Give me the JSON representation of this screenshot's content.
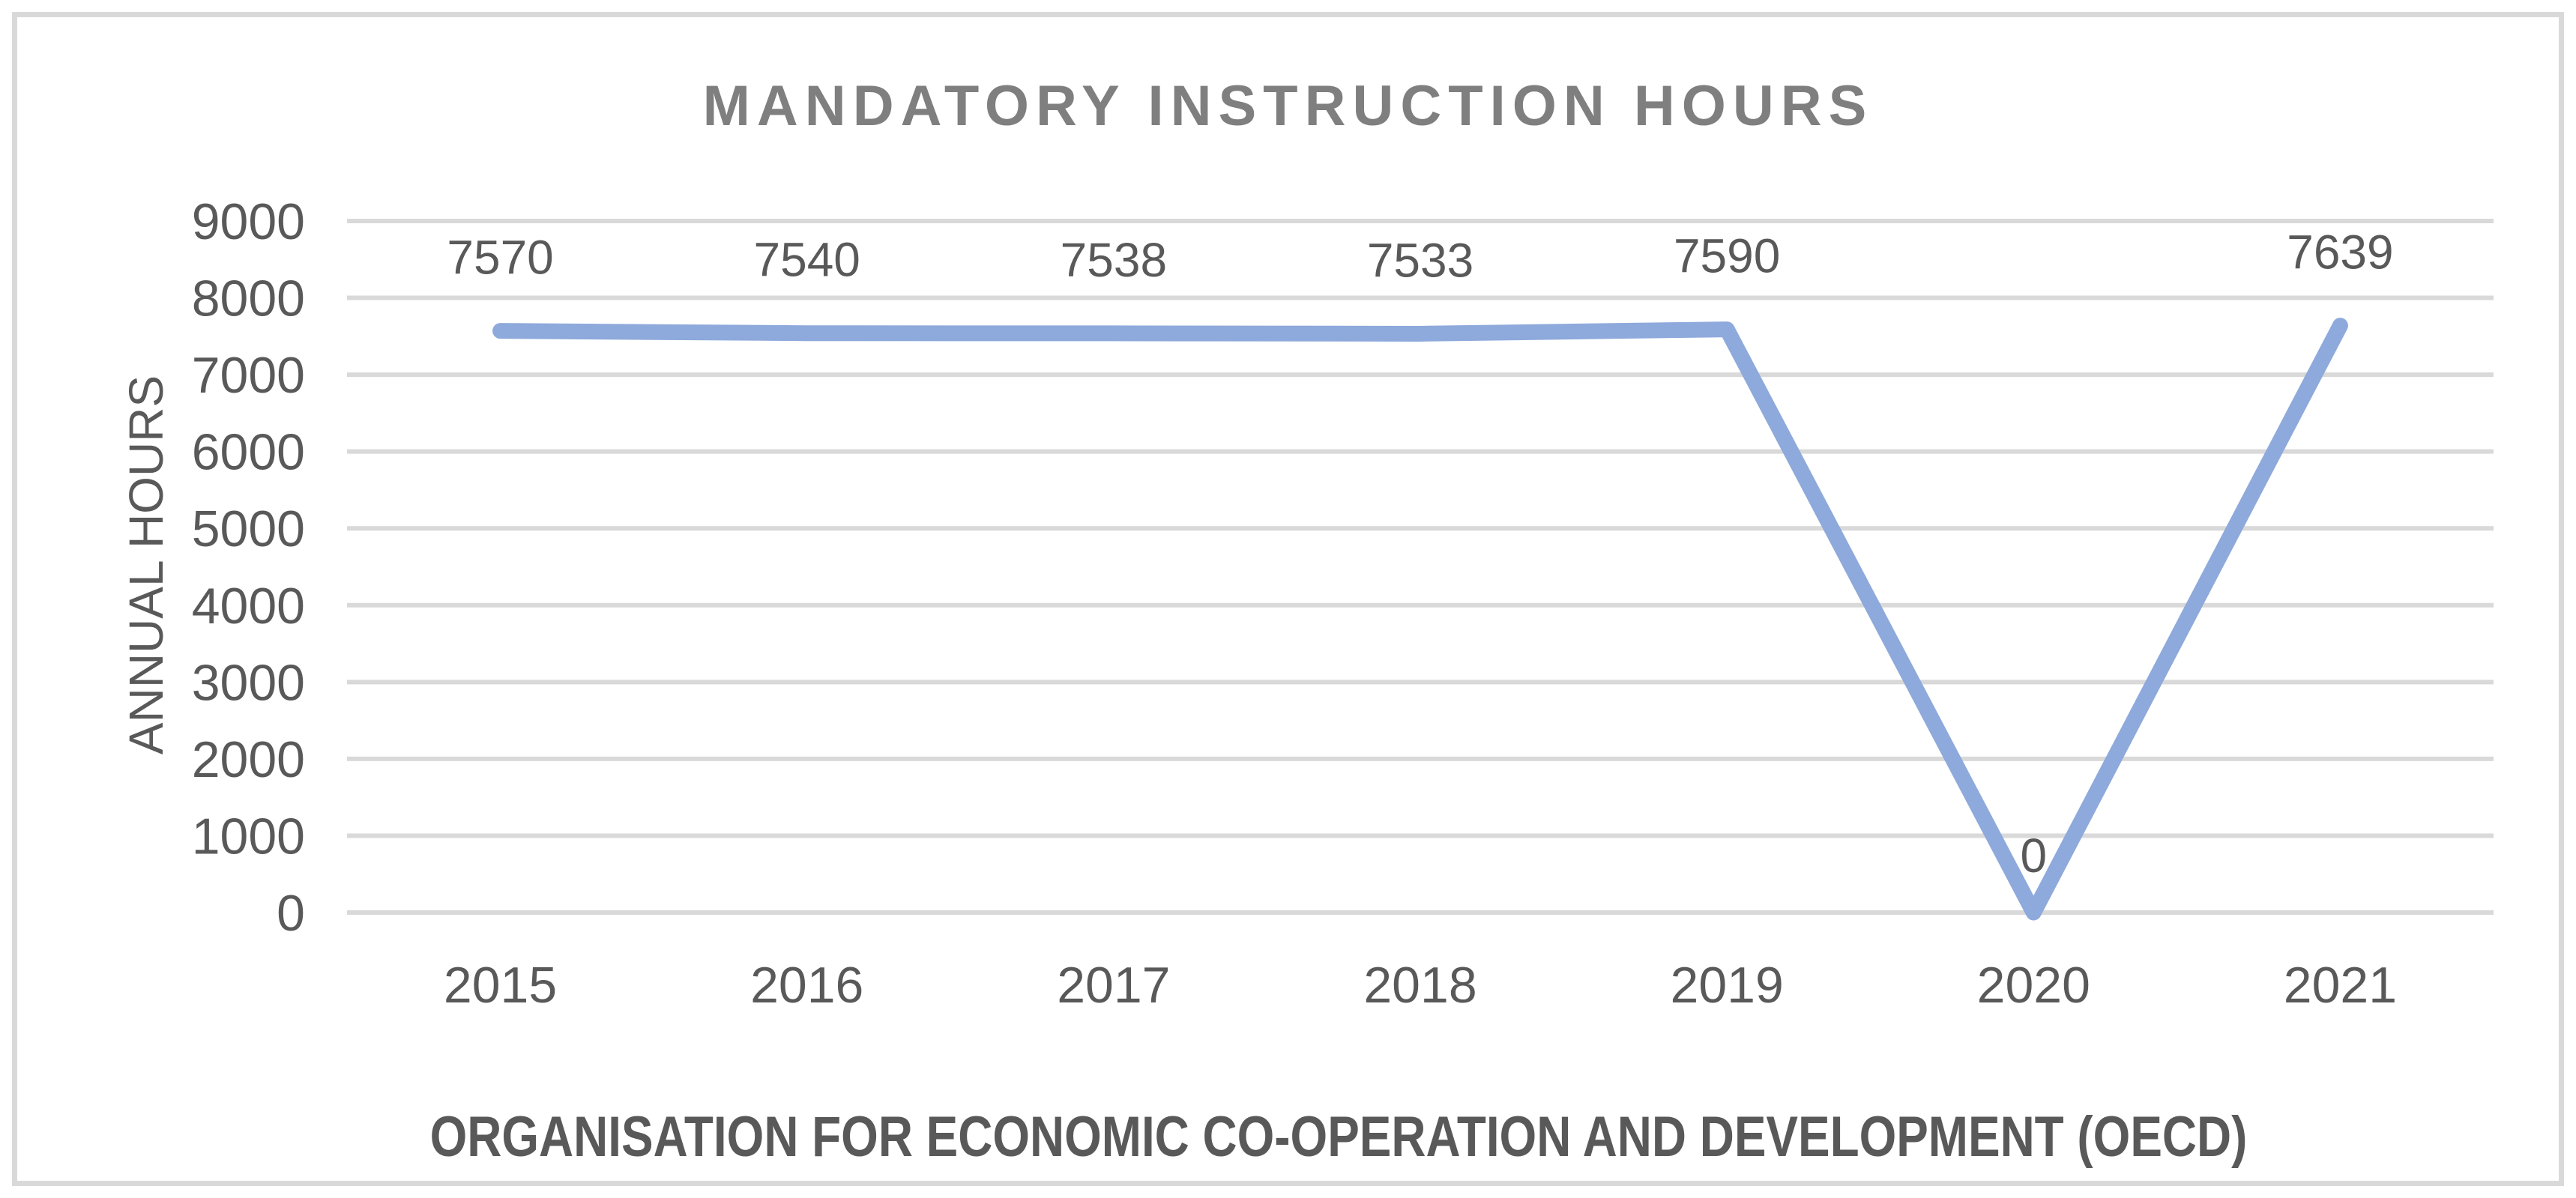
{
  "chart_data": {
    "type": "line",
    "title": "MANDATORY INSTRUCTION HOURS",
    "xlabel": "ORGANISATION FOR ECONOMIC CO-OPERATION AND DEVELOPMENT (OECD)",
    "ylabel": "ANNUAL HOURS",
    "categories": [
      "2015",
      "2016",
      "2017",
      "2018",
      "2019",
      "2020",
      "2021"
    ],
    "values": [
      7570,
      7540,
      7538,
      7533,
      7590,
      0,
      7639
    ],
    "data_labels": [
      "7570",
      "7540",
      "7538",
      "7533",
      "7590",
      "0",
      "7639"
    ],
    "ylim": [
      0,
      9000
    ],
    "y_ticks": [
      0,
      1000,
      2000,
      3000,
      4000,
      5000,
      6000,
      7000,
      8000,
      9000
    ],
    "grid": "horizontal",
    "legend": "none",
    "colors": {
      "line": "#8EA9DB",
      "gridline": "#D9D9D9",
      "tick_text": "#595959",
      "data_label_text": "#595959",
      "title_text": "#7F7F7F",
      "axis_title_text": "#595959",
      "frame_border": "#D9D9D9",
      "background": "#FFFFFF"
    }
  }
}
